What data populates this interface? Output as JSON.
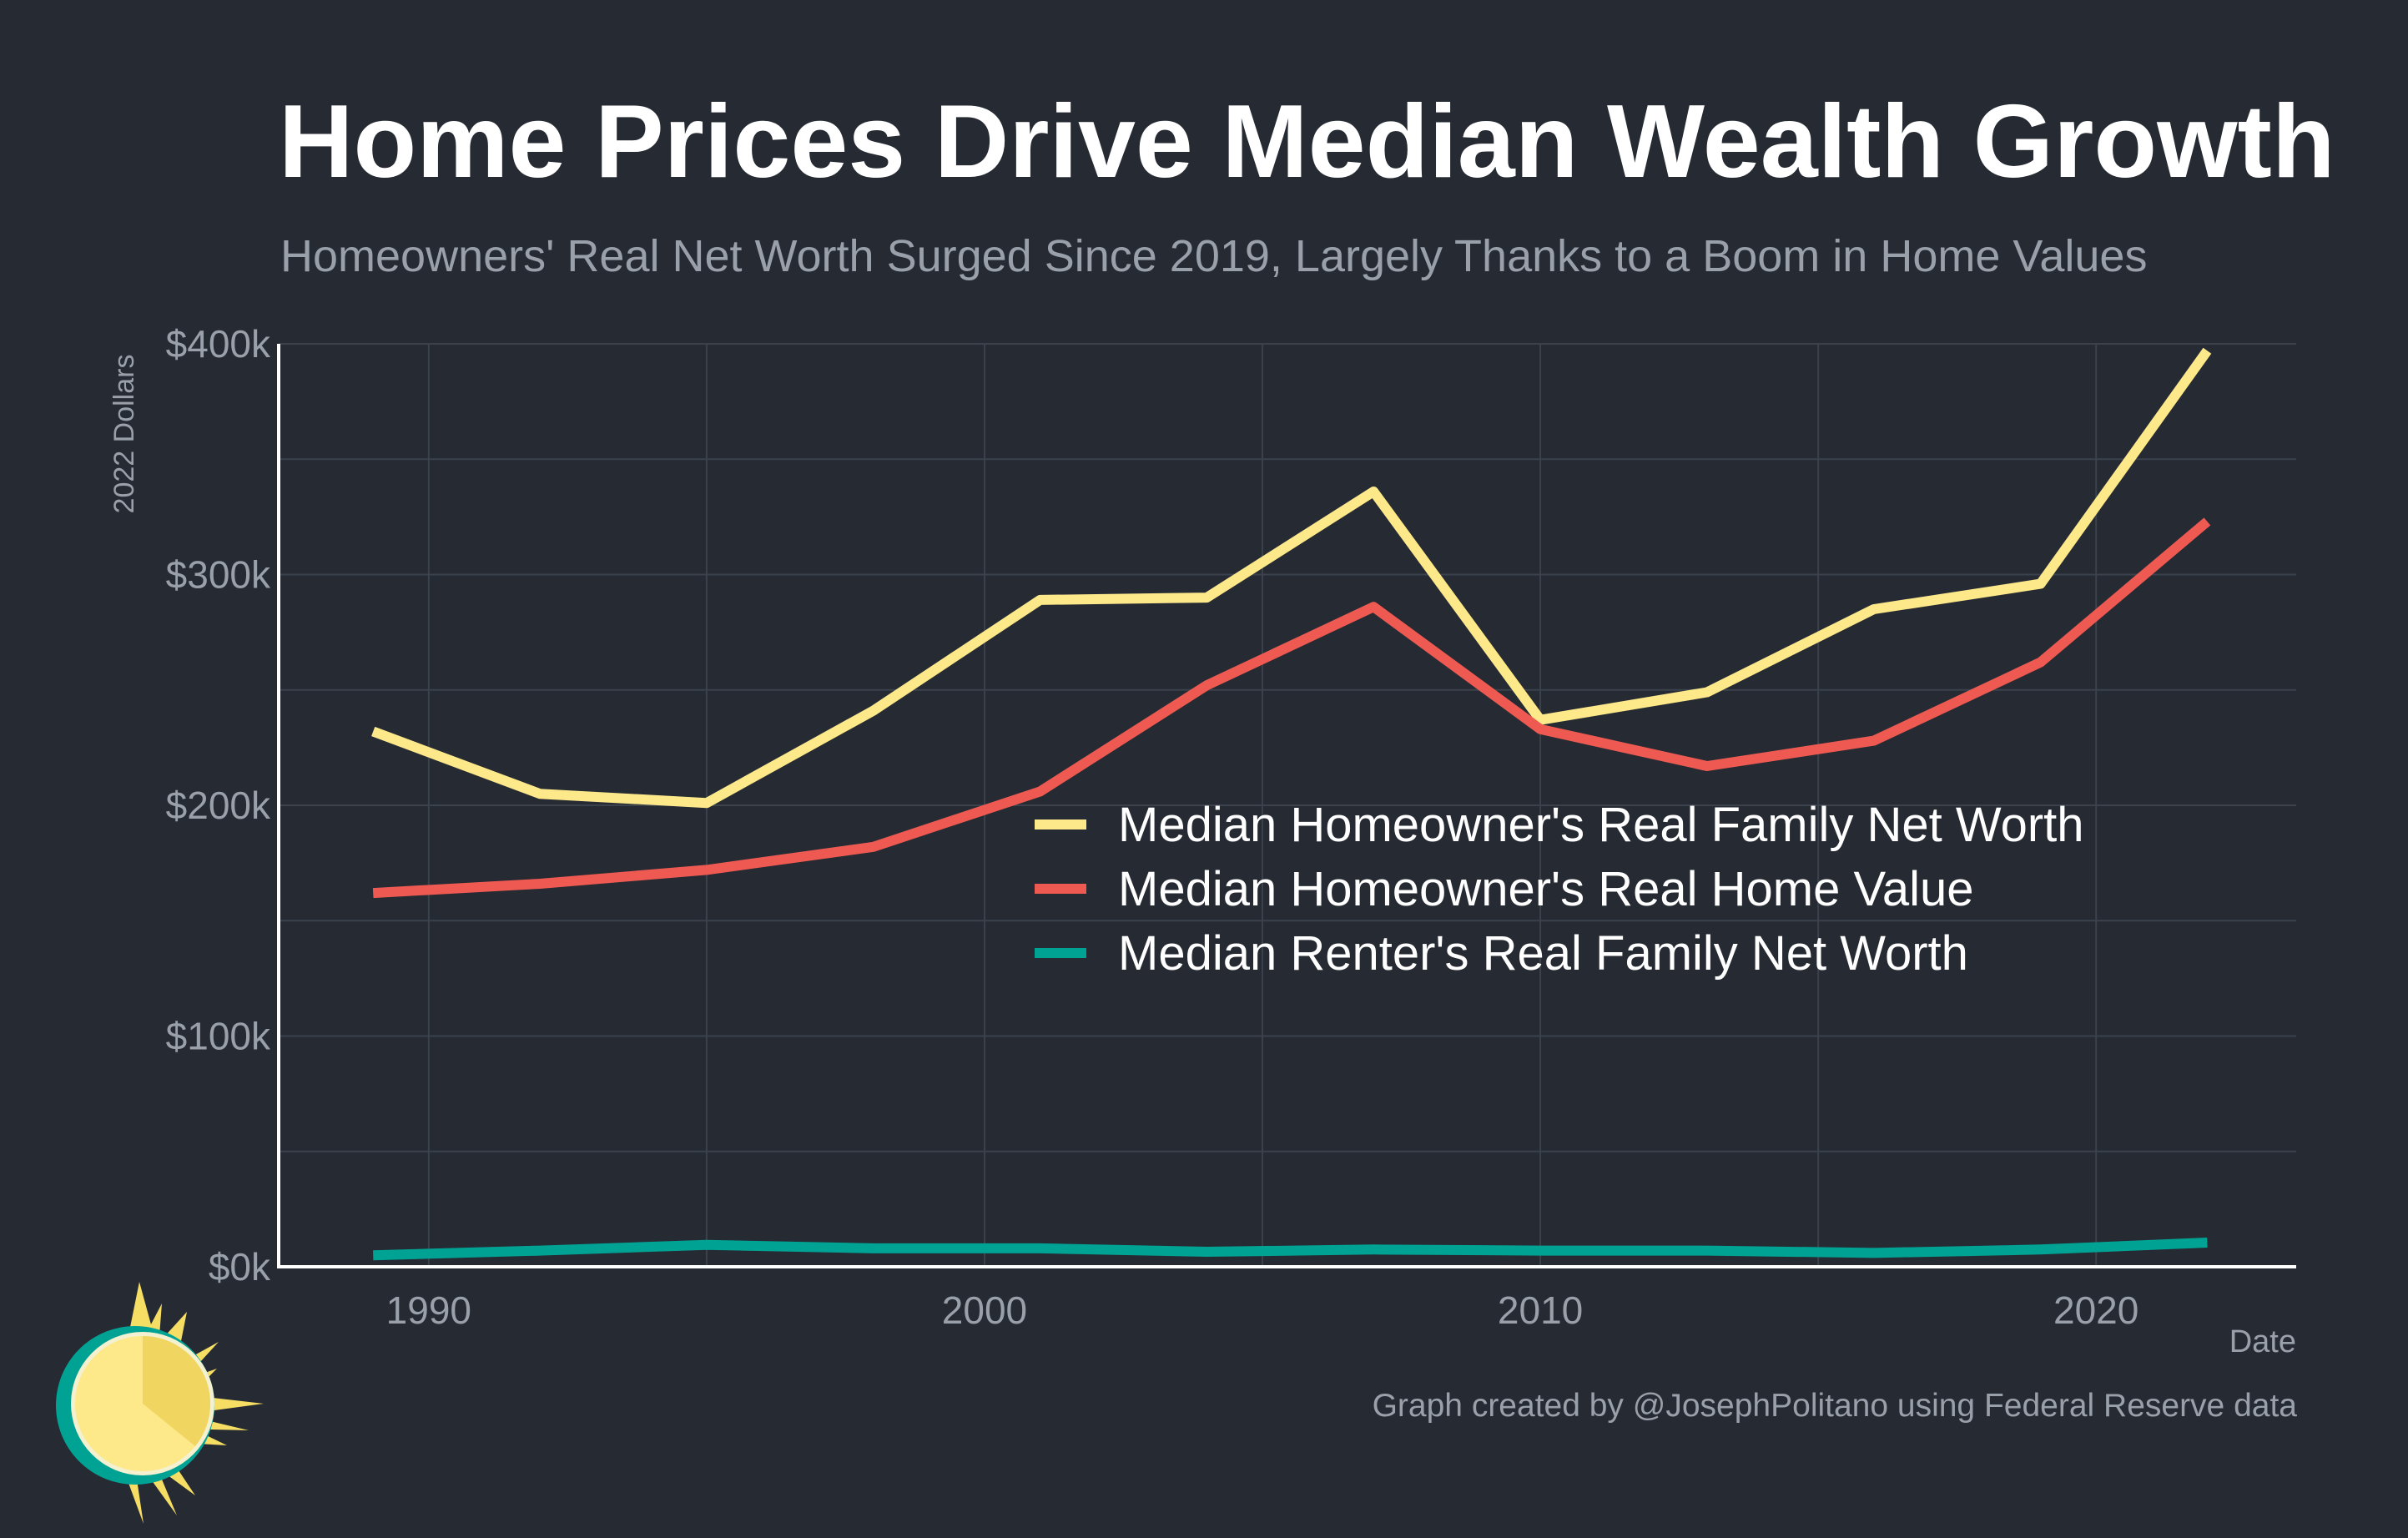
{
  "title": "Home Prices Drive Median Wealth Growth",
  "subtitle": "Homeowners' Real Net Worth Surged Since 2019, Largely Thanks to a Boom in Home Values",
  "caption": "Graph created by @JosephPolitano using Federal Reserve data",
  "logo_icon": "sun-logo-icon",
  "colors": {
    "background": "#252a33",
    "grid": "#3c424c",
    "axis": "#ffffff",
    "tick_text": "#9aa0aa"
  },
  "chart_data": {
    "type": "line",
    "title": "Home Prices Drive Median Wealth Growth",
    "subtitle": "Homeowners' Real Net Worth Surged Since 2019, Largely Thanks to a Boom in Home Values",
    "xlabel": "Date",
    "ylabel": "2022 Dollars",
    "xlim": [
      1987.3,
      2023.6
    ],
    "ylim": [
      0,
      400000
    ],
    "x_ticks": [
      {
        "value": 1990,
        "label": "1990"
      },
      {
        "value": 2000,
        "label": "2000"
      },
      {
        "value": 2010,
        "label": "2010"
      },
      {
        "value": 2020,
        "label": "2020"
      }
    ],
    "y_ticks": [
      {
        "value": 0,
        "label": "$0k"
      },
      {
        "value": 100000,
        "label": "$100k"
      },
      {
        "value": 200000,
        "label": "$200k"
      },
      {
        "value": 300000,
        "label": "$300k"
      },
      {
        "value": 400000,
        "label": "$400k"
      }
    ],
    "grid": true,
    "legend_position": "center-right",
    "x": [
      1989,
      1992,
      1995,
      1998,
      2001,
      2004,
      2007,
      2010,
      2013,
      2016,
      2019,
      2022
    ],
    "series": [
      {
        "name": "Median Homeowner's Real Family Net Worth",
        "color": "#fde88a",
        "values": [
          232000,
          205000,
          201000,
          241000,
          289000,
          290000,
          336000,
          237000,
          249000,
          285000,
          296000,
          397000
        ]
      },
      {
        "name": "Median Homeowner's Real Home Value",
        "color": "#ee5a52",
        "values": [
          162000,
          166000,
          172000,
          182000,
          206000,
          252000,
          286000,
          233000,
          217000,
          228000,
          262000,
          323000
        ]
      },
      {
        "name": "Median Renter's Real Family Net Worth",
        "color": "#00a294",
        "values": [
          5000,
          7000,
          9500,
          8000,
          8000,
          6500,
          7500,
          7000,
          7000,
          6000,
          7500,
          10500
        ]
      }
    ]
  }
}
